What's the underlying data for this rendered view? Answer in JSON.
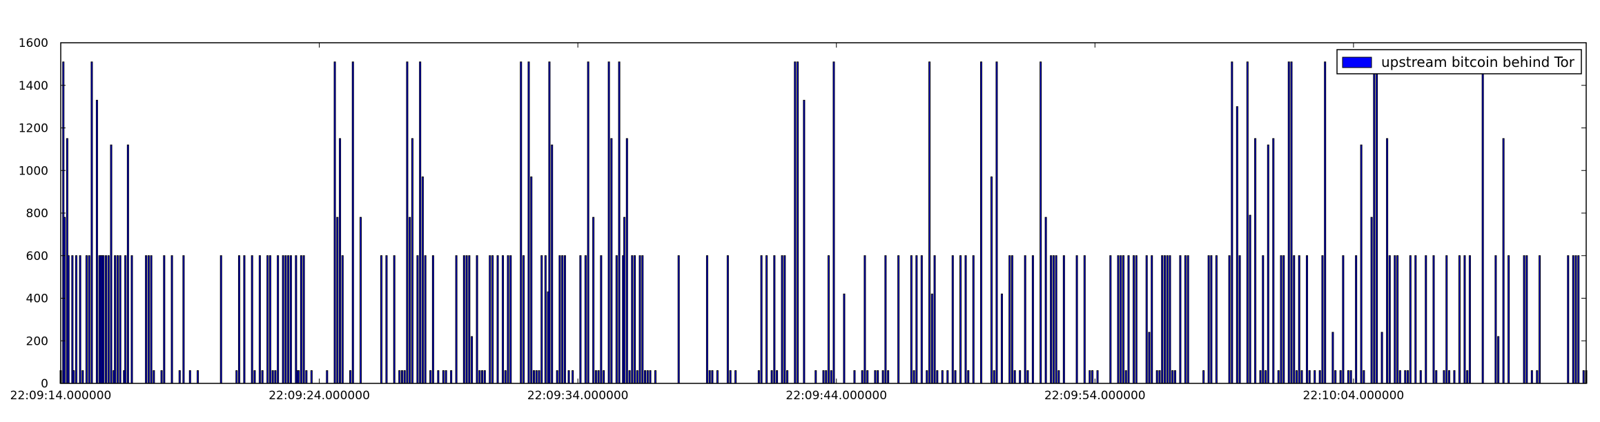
{
  "chart_data": {
    "type": "bar",
    "title": "",
    "xlabel": "",
    "ylabel": "",
    "xlim": [
      0,
      59
    ],
    "ylim": [
      0,
      1600
    ],
    "y_ticks": [
      0,
      200,
      400,
      600,
      800,
      1000,
      1200,
      1400,
      1600
    ],
    "x_ticks": [
      {
        "t": 0,
        "label": "22:09:14.000000"
      },
      {
        "t": 10,
        "label": "22:09:24.000000"
      },
      {
        "t": 20,
        "label": "22:09:34.000000"
      },
      {
        "t": 30,
        "label": "22:09:44.000000"
      },
      {
        "t": 40,
        "label": "22:09:54.000000"
      },
      {
        "t": 50,
        "label": "22:10:04.000000"
      }
    ],
    "grid": false,
    "legend_position": "top-right",
    "series": [
      {
        "name": "upstream bitcoin behind Tor",
        "color": "#0000ff",
        "x": [
          0.0,
          0.1,
          0.15,
          0.25,
          0.3,
          0.45,
          0.5,
          0.6,
          0.75,
          0.85,
          1.0,
          1.1,
          1.2,
          1.4,
          1.5,
          1.55,
          1.6,
          1.65,
          1.75,
          1.85,
          1.95,
          2.05,
          2.1,
          2.2,
          2.3,
          2.45,
          2.5,
          2.6,
          2.75,
          3.3,
          3.4,
          3.5,
          3.6,
          3.9,
          4.0,
          4.3,
          4.6,
          4.75,
          5.0,
          5.3,
          6.2,
          6.8,
          6.9,
          7.1,
          7.4,
          7.5,
          7.7,
          7.8,
          8.0,
          8.1,
          8.2,
          8.3,
          8.4,
          8.6,
          8.7,
          8.8,
          8.9,
          9.1,
          9.15,
          9.2,
          9.3,
          9.4,
          9.5,
          9.7,
          10.3,
          10.6,
          10.7,
          10.8,
          10.9,
          11.2,
          11.3,
          11.6,
          12.4,
          12.6,
          12.9,
          13.1,
          13.2,
          13.3,
          13.4,
          13.5,
          13.6,
          13.8,
          13.9,
          14.0,
          14.1,
          14.3,
          14.4,
          14.6,
          14.8,
          14.9,
          15.1,
          15.3,
          15.6,
          15.7,
          15.8,
          15.9,
          16.1,
          16.2,
          16.3,
          16.4,
          16.6,
          16.7,
          16.9,
          17.1,
          17.2,
          17.3,
          17.4,
          17.8,
          17.9,
          18.1,
          18.2,
          18.3,
          18.4,
          18.5,
          18.6,
          18.75,
          18.85,
          18.9,
          19.0,
          19.2,
          19.3,
          19.4,
          19.5,
          19.65,
          19.8,
          20.1,
          20.3,
          20.4,
          20.6,
          20.7,
          20.8,
          20.9,
          21.0,
          21.2,
          21.3,
          21.5,
          21.6,
          21.75,
          21.8,
          21.9,
          22.0,
          22.1,
          22.2,
          22.3,
          22.4,
          22.5,
          22.6,
          22.7,
          22.8,
          23.0,
          23.9,
          25.0,
          25.1,
          25.2,
          25.4,
          25.8,
          25.9,
          26.1,
          27.0,
          27.1,
          27.3,
          27.5,
          27.6,
          27.7,
          27.9,
          28.0,
          28.1,
          28.4,
          28.5,
          28.75,
          29.2,
          29.5,
          29.6,
          29.7,
          29.8,
          29.9,
          30.3,
          30.7,
          31.0,
          31.1,
          31.2,
          31.5,
          31.6,
          31.8,
          31.9,
          32.0,
          32.4,
          32.9,
          33.0,
          33.1,
          33.3,
          33.5,
          33.6,
          33.7,
          33.8,
          33.9,
          34.1,
          34.3,
          34.5,
          34.6,
          34.8,
          35.0,
          35.1,
          35.3,
          35.6,
          36.0,
          36.1,
          36.2,
          36.4,
          36.7,
          36.8,
          36.9,
          37.1,
          37.3,
          37.4,
          37.6,
          37.9,
          38.1,
          38.3,
          38.4,
          38.5,
          38.6,
          38.8,
          39.3,
          39.6,
          39.8,
          39.9,
          40.1,
          40.6,
          40.9,
          41.0,
          41.1,
          41.2,
          41.3,
          41.5,
          41.6,
          42.0,
          42.1,
          42.2,
          42.4,
          42.5,
          42.6,
          42.7,
          42.8,
          42.9,
          43.0,
          43.1,
          43.3,
          43.5,
          43.6,
          44.2,
          44.4,
          44.5,
          44.7,
          45.2,
          45.3,
          45.5,
          45.6,
          45.9,
          46.0,
          46.2,
          46.4,
          46.5,
          46.6,
          46.7,
          46.9,
          47.1,
          47.2,
          47.3,
          47.5,
          47.6,
          47.7,
          47.8,
          47.9,
          48.0,
          48.2,
          48.3,
          48.5,
          48.7,
          48.8,
          48.9,
          49.2,
          49.3,
          49.5,
          49.6,
          49.8,
          49.9,
          50.1,
          50.3,
          50.4,
          50.7,
          50.8,
          50.9,
          51.1,
          51.3,
          51.4,
          51.6,
          51.7,
          51.8,
          52.0,
          52.1,
          52.2,
          52.4,
          52.6,
          52.8,
          53.1,
          53.2,
          53.5,
          53.6,
          53.7,
          53.9,
          54.1,
          54.3,
          54.4,
          54.5,
          55.0,
          55.5,
          55.6,
          55.8,
          56.0,
          56.6,
          56.7,
          56.9,
          57.1,
          57.2,
          58.3,
          58.5,
          58.6,
          58.7,
          58.9,
          59.0
        ],
        "values": [
          60,
          1510,
          780,
          1150,
          600,
          600,
          60,
          600,
          600,
          60,
          600,
          600,
          1510,
          1330,
          600,
          600,
          600,
          600,
          600,
          600,
          1120,
          60,
          600,
          600,
          600,
          60,
          600,
          1120,
          600,
          600,
          600,
          600,
          60,
          60,
          600,
          600,
          60,
          600,
          60,
          60,
          600,
          60,
          600,
          600,
          600,
          60,
          600,
          60,
          600,
          600,
          60,
          60,
          600,
          600,
          600,
          600,
          600,
          600,
          60,
          60,
          600,
          600,
          60,
          60,
          60,
          1510,
          780,
          1150,
          600,
          60,
          1510,
          780,
          600,
          600,
          600,
          60,
          60,
          60,
          1510,
          780,
          1150,
          600,
          1510,
          970,
          600,
          60,
          600,
          60,
          60,
          60,
          60,
          600,
          600,
          600,
          600,
          220,
          600,
          60,
          60,
          60,
          600,
          600,
          600,
          600,
          60,
          600,
          600,
          1510,
          600,
          1510,
          970,
          60,
          60,
          60,
          600,
          600,
          430,
          1510,
          1120,
          60,
          600,
          600,
          600,
          60,
          60,
          600,
          600,
          1510,
          780,
          60,
          60,
          600,
          60,
          1510,
          1150,
          600,
          1510,
          600,
          780,
          1150,
          60,
          600,
          600,
          60,
          600,
          600,
          60,
          60,
          60,
          60,
          600,
          600,
          60,
          60,
          60,
          600,
          60,
          60,
          60,
          600,
          600,
          60,
          600,
          60,
          600,
          600,
          60,
          1510,
          1510,
          1330,
          60,
          60,
          60,
          600,
          60,
          1510,
          420,
          60,
          60,
          600,
          60,
          60,
          60,
          60,
          600,
          60,
          600,
          600,
          60,
          600,
          600,
          60,
          1510,
          420,
          600,
          60,
          60,
          60,
          600,
          60,
          600,
          600,
          60,
          600,
          1510,
          970,
          60,
          1510,
          420,
          600,
          600,
          60,
          60,
          600,
          60,
          600,
          1510,
          780,
          600,
          600,
          600,
          60,
          600,
          600,
          600,
          60,
          60,
          60,
          600,
          600,
          600,
          600,
          60,
          600,
          600,
          600,
          600,
          240,
          600,
          60,
          60,
          600,
          600,
          600,
          600,
          60,
          60,
          600,
          600,
          600,
          60,
          600,
          600,
          600,
          600,
          1510,
          1300,
          600,
          1510,
          790,
          1150,
          60,
          600,
          60,
          1120,
          1150,
          60,
          600,
          600,
          1510,
          1510,
          600,
          60,
          600,
          60,
          600,
          60,
          60,
          60,
          600,
          1510,
          240,
          60,
          60,
          600,
          60,
          60,
          600,
          1120,
          60,
          780,
          1510,
          1510,
          240,
          1150,
          600,
          600,
          600,
          60,
          60,
          60,
          600,
          600,
          60,
          600,
          600,
          60,
          60,
          600,
          60,
          60,
          600,
          600,
          60,
          600,
          1510,
          600,
          220,
          1150,
          600,
          600,
          600,
          60,
          60,
          600,
          600,
          600,
          600,
          600,
          60,
          60
        ]
      }
    ]
  }
}
